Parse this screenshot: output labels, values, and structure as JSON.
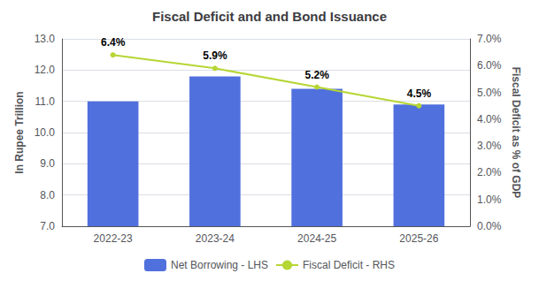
{
  "chart_data": {
    "type": "bar",
    "title": "Fiscal Deficit and and Bond Issuance",
    "categories": [
      "2022-23",
      "2023-24",
      "2024-25",
      "2025-26"
    ],
    "series": [
      {
        "name": "Net Borrowing - LHS",
        "type": "bar",
        "values": [
          11.0,
          11.8,
          11.4,
          10.9
        ]
      },
      {
        "name": "Fiscal Deficit - RHS",
        "type": "line",
        "axis": "y2",
        "values": [
          6.4,
          5.9,
          5.2,
          4.5
        ],
        "data_labels": true,
        "value_labels": [
          "6.4%",
          "5.9%",
          "5.2%",
          "4.5%"
        ]
      }
    ],
    "ylabel": "In Rupee Trillion",
    "y2label": "Fiscal Deficit as % of GDP",
    "ylim": [
      7.0,
      13.0
    ],
    "yticks": [
      {
        "value": 7.0,
        "label": "7.0"
      },
      {
        "value": 8.0,
        "label": "8.0"
      },
      {
        "value": 9.0,
        "label": "9.0"
      },
      {
        "value": 10.0,
        "label": "10.0"
      },
      {
        "value": 11.0,
        "label": "11.0"
      },
      {
        "value": 12.0,
        "label": "12.0"
      },
      {
        "value": 13.0,
        "label": "13.0"
      }
    ],
    "y2lim": [
      0.0,
      7.0
    ],
    "y2ticks": [
      {
        "value": 0.0,
        "label": "0.0%"
      },
      {
        "value": 1.0,
        "label": "1.0%"
      },
      {
        "value": 2.0,
        "label": "2.0%"
      },
      {
        "value": 3.0,
        "label": "3.0%"
      },
      {
        "value": 4.0,
        "label": "4.0%"
      },
      {
        "value": 5.0,
        "label": "5.0%"
      },
      {
        "value": 6.0,
        "label": "6.0%"
      },
      {
        "value": 7.0,
        "label": "7.0%"
      }
    ],
    "grid": true,
    "legend": "bottom"
  }
}
